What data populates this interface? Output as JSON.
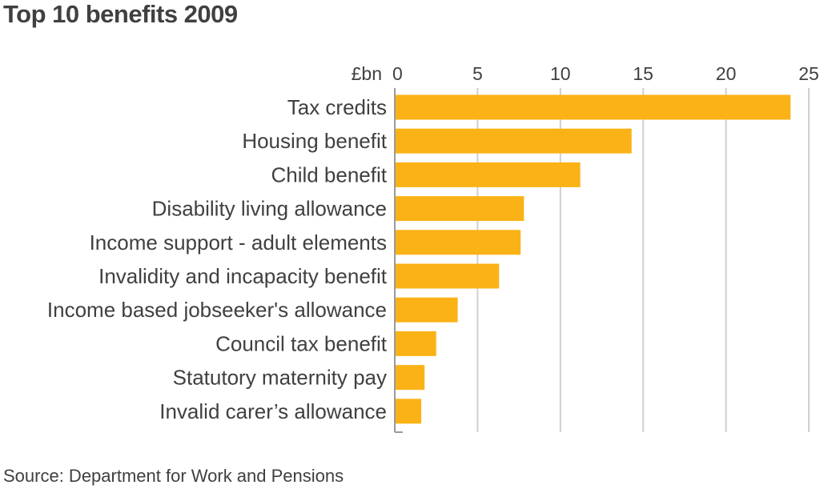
{
  "title": "Top 10 benefits 2009",
  "source": "Source: Department for Work and Pensions",
  "colors": {
    "bar": "#FBB216",
    "gridline": "#cfcfcf",
    "axis": "#9a9a9a",
    "text": "#404040"
  },
  "chart_data": {
    "type": "bar",
    "orientation": "horizontal",
    "title": "Top 10 benefits 2009",
    "unit_label": "£bn",
    "categories": [
      "Tax credits",
      "Housing benefit",
      "Child benefit",
      "Disability living allowance",
      "Income support - adult elements",
      "Invalidity and incapacity benefit",
      "Income based jobseeker's allowance",
      "Council tax benefit",
      "Statutory maternity pay",
      "Invalid carer’s allowance"
    ],
    "values": [
      23.9,
      14.3,
      11.2,
      7.8,
      7.6,
      6.3,
      3.8,
      2.5,
      1.8,
      1.6
    ],
    "xlim": [
      0,
      25
    ],
    "ticks": [
      0,
      5,
      10,
      15,
      20,
      25
    ],
    "tick_labels": [
      "0",
      "5",
      "10",
      "15",
      "20",
      "25"
    ],
    "axis_position": "top",
    "grid": true,
    "legend": "none"
  }
}
